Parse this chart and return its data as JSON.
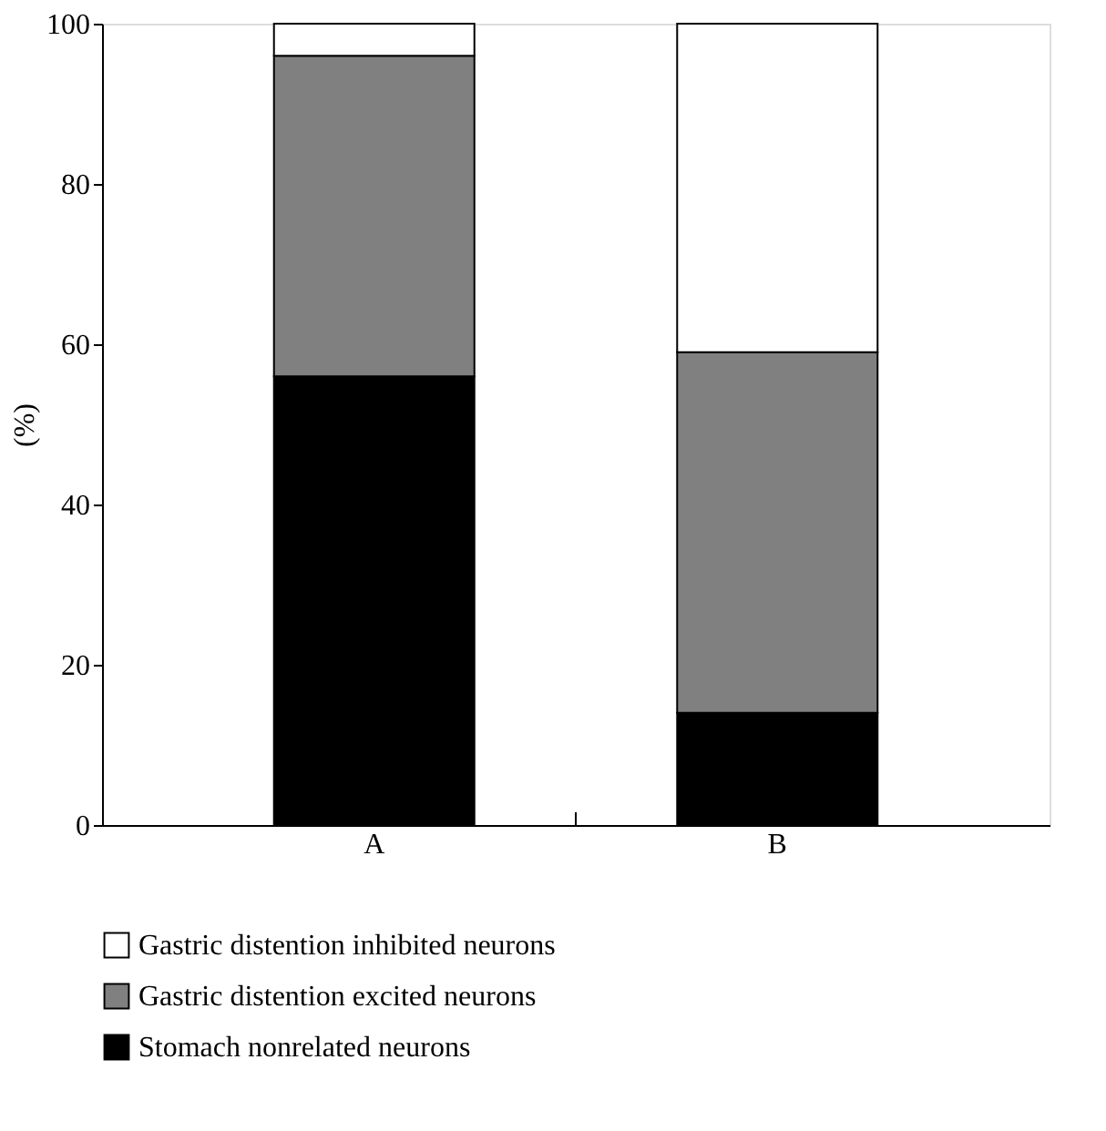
{
  "chart_data": {
    "type": "bar",
    "stacked": true,
    "ylabel": "(%)",
    "categories": [
      "A",
      "B"
    ],
    "series": [
      {
        "name": "Stomach nonrelated neurons",
        "color": "#000000",
        "values": [
          56,
          14
        ]
      },
      {
        "name": "Gastric distention excited neurons",
        "color": "#808080",
        "values": [
          40,
          45
        ]
      },
      {
        "name": "Gastric distention inhibited neurons",
        "color": "#ffffff",
        "values": [
          4,
          41
        ]
      }
    ],
    "ylim": [
      0,
      100
    ],
    "yticks": [
      0,
      20,
      40,
      60,
      80,
      100
    ],
    "grid": false,
    "legend": "bottom"
  }
}
